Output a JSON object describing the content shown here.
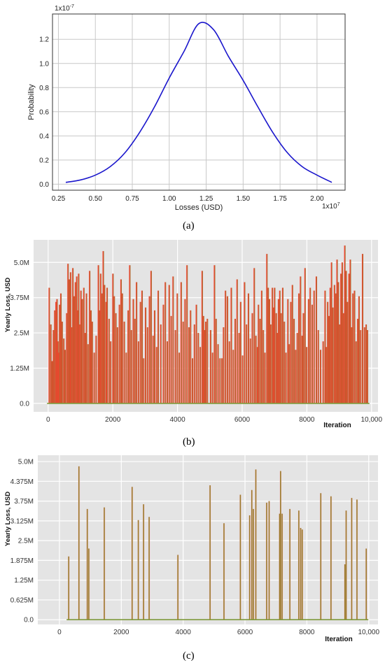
{
  "panels": {
    "a_caption": "(a)",
    "b_caption": "(b)",
    "c_caption": "(c)"
  },
  "chart_data": [
    {
      "type": "line",
      "id": "a",
      "title": "",
      "xlabel": "Losses (USD)",
      "ylabel": "Probability",
      "x_multiplier": "1x10",
      "x_exponent": "7",
      "y_multiplier": "1x10",
      "y_exponent": "-7",
      "xlim": [
        0.21,
        2.19
      ],
      "ylim": [
        -0.05,
        1.41
      ],
      "xticks": [
        0.25,
        0.5,
        0.75,
        1.0,
        1.25,
        1.5,
        1.75,
        2.0
      ],
      "xticklabels": [
        "0.25",
        "0.50",
        "0.75",
        "1.00",
        "1.25",
        "1.50",
        "1.75",
        "2.00"
      ],
      "yticks": [
        0.0,
        0.2,
        0.4,
        0.6,
        0.8,
        1.0,
        1.2
      ],
      "yticklabels": [
        "0.0",
        "0.2",
        "0.4",
        "0.6",
        "0.8",
        "1.0",
        "1.2"
      ],
      "grid": true,
      "series": [
        {
          "color": "#1a16cc",
          "x": [
            0.3,
            0.4,
            0.5,
            0.6,
            0.7,
            0.8,
            0.9,
            1.0,
            1.1,
            1.2,
            1.3,
            1.4,
            1.5,
            1.6,
            1.7,
            1.8,
            1.9,
            2.0,
            2.1
          ],
          "y": [
            0.015,
            0.035,
            0.075,
            0.145,
            0.26,
            0.43,
            0.64,
            0.88,
            1.1,
            1.33,
            1.28,
            1.06,
            0.86,
            0.64,
            0.43,
            0.26,
            0.145,
            0.075,
            0.015
          ]
        }
      ]
    },
    {
      "type": "bar",
      "id": "b",
      "title": "",
      "xlabel": "Iteration",
      "ylabel": "Yearly Loss, USD",
      "xlim": [
        -450,
        10200
      ],
      "ylim": [
        -300000,
        5800000
      ],
      "xticks": [
        0,
        2000,
        4000,
        6000,
        8000,
        10000
      ],
      "xticklabels": [
        "0",
        "2000",
        "4000",
        "6000",
        "8000",
        "10,000"
      ],
      "yticks": [
        0,
        1250000,
        2500000,
        3750000,
        5000000
      ],
      "yticklabels": [
        "0.0",
        "1.25M",
        "2.5M",
        "3.75M",
        "5.0M"
      ],
      "grid": true,
      "colors": {
        "bar": "#e8482e",
        "bar_edge": "#8a7a2c",
        "baseline": "#7f9a3c",
        "background": "#e4e4e4",
        "tint": "#f7c9d3"
      },
      "values": [
        [
          30,
          4100000
        ],
        [
          80,
          2800000
        ],
        [
          120,
          1500000
        ],
        [
          160,
          2600000
        ],
        [
          200,
          3300000
        ],
        [
          240,
          3600000
        ],
        [
          270,
          3700000
        ],
        [
          300,
          2200000
        ],
        [
          320,
          1800000
        ],
        [
          350,
          3500000
        ],
        [
          390,
          3900000
        ],
        [
          430,
          2900000
        ],
        [
          480,
          2300000
        ],
        [
          520,
          1900000
        ],
        [
          570,
          3200000
        ],
        [
          610,
          4950000
        ],
        [
          650,
          4400000
        ],
        [
          690,
          4650000
        ],
        [
          720,
          2700000
        ],
        [
          760,
          4800000
        ],
        [
          800,
          3800000
        ],
        [
          840,
          4300000
        ],
        [
          880,
          4500000
        ],
        [
          900,
          3300000
        ],
        [
          940,
          4600000
        ],
        [
          970,
          2800000
        ],
        [
          1010,
          4000000
        ],
        [
          1050,
          3700000
        ],
        [
          1100,
          4100000
        ],
        [
          1140,
          2500000
        ],
        [
          1180,
          3900000
        ],
        [
          1230,
          2100000
        ],
        [
          1280,
          4700000
        ],
        [
          1320,
          3300000
        ],
        [
          1360,
          2900000
        ],
        [
          1420,
          1800000
        ],
        [
          1480,
          2400000
        ],
        [
          1550,
          4900000
        ],
        [
          1590,
          3300000
        ],
        [
          1620,
          4600000
        ],
        [
          1660,
          3900000
        ],
        [
          1700,
          5400000
        ],
        [
          1740,
          4200000
        ],
        [
          1790,
          3600000
        ],
        [
          1820,
          4100000
        ],
        [
          1880,
          3000000
        ],
        [
          1930,
          2200000
        ],
        [
          2000,
          4600000
        ],
        [
          2040,
          3800000
        ],
        [
          2090,
          3200000
        ],
        [
          2140,
          2700000
        ],
        [
          2200,
          3500000
        ],
        [
          2250,
          4400000
        ],
        [
          2290,
          3900000
        ],
        [
          2350,
          2900000
        ],
        [
          2410,
          1800000
        ],
        [
          2470,
          3300000
        ],
        [
          2520,
          4900000
        ],
        [
          2570,
          2600000
        ],
        [
          2630,
          3700000
        ],
        [
          2680,
          3000000
        ],
        [
          2730,
          4300000
        ],
        [
          2790,
          2200000
        ],
        [
          2850,
          3600000
        ],
        [
          2900,
          4000000
        ],
        [
          2950,
          1600000
        ],
        [
          3010,
          3400000
        ],
        [
          3070,
          2700000
        ],
        [
          3130,
          3800000
        ],
        [
          3180,
          4700000
        ],
        [
          3240,
          2400000
        ],
        [
          3290,
          3300000
        ],
        [
          3350,
          2000000
        ],
        [
          3400,
          4000000
        ],
        [
          3480,
          2800000
        ],
        [
          3560,
          3500000
        ],
        [
          3620,
          4300000
        ],
        [
          3680,
          2200000
        ],
        [
          3740,
          4200000
        ],
        [
          3800,
          3100000
        ],
        [
          3860,
          4500000
        ],
        [
          3930,
          2600000
        ],
        [
          3990,
          3900000
        ],
        [
          4050,
          1800000
        ],
        [
          4110,
          4300000
        ],
        [
          4170,
          2900000
        ],
        [
          4230,
          3700000
        ],
        [
          4290,
          4900000
        ],
        [
          4350,
          2700000
        ],
        [
          4400,
          3300000
        ],
        [
          4460,
          1600000
        ],
        [
          4520,
          2800000
        ],
        [
          4580,
          3500000
        ],
        [
          4640,
          2500000
        ],
        [
          4700,
          2000000
        ],
        [
          4760,
          4700000
        ],
        [
          4800,
          3100000
        ],
        [
          4830,
          2600000
        ],
        [
          4870,
          2900000
        ],
        [
          4920,
          3000000
        ],
        [
          5020,
          2600000
        ],
        [
          5080,
          1800000
        ],
        [
          5140,
          4900000
        ],
        [
          5190,
          3000000
        ],
        [
          5250,
          2100000
        ],
        [
          5310,
          1600000
        ],
        [
          5370,
          1600000
        ],
        [
          5420,
          2700000
        ],
        [
          5480,
          4000000
        ],
        [
          5540,
          3800000
        ],
        [
          5600,
          2200000
        ],
        [
          5660,
          4100000
        ],
        [
          5720,
          1900000
        ],
        [
          5780,
          3000000
        ],
        [
          5840,
          4400000
        ],
        [
          5900,
          2500000
        ],
        [
          5950,
          3600000
        ],
        [
          6010,
          1700000
        ],
        [
          6070,
          4300000
        ],
        [
          6130,
          2800000
        ],
        [
          6190,
          3900000
        ],
        [
          6250,
          2300000
        ],
        [
          6310,
          3200000
        ],
        [
          6370,
          4800000
        ],
        [
          6420,
          2400000
        ],
        [
          6470,
          2000000
        ],
        [
          6500,
          3500000
        ],
        [
          6550,
          3000000
        ],
        [
          6600,
          4000000
        ],
        [
          6650,
          2600000
        ],
        [
          6700,
          1800000
        ],
        [
          6760,
          5300000
        ],
        [
          6800,
          4100000
        ],
        [
          6840,
          3700000
        ],
        [
          6880,
          2800000
        ],
        [
          6930,
          4100000
        ],
        [
          6970,
          3400000
        ],
        [
          7000,
          4100000
        ],
        [
          7050,
          3200000
        ],
        [
          7090,
          2500000
        ],
        [
          7120,
          3700000
        ],
        [
          7160,
          4000000
        ],
        [
          7200,
          3200000
        ],
        [
          7250,
          4100000
        ],
        [
          7300,
          2900000
        ],
        [
          7350,
          1800000
        ],
        [
          7410,
          3700000
        ],
        [
          7450,
          2100000
        ],
        [
          7500,
          3600000
        ],
        [
          7550,
          4200000
        ],
        [
          7600,
          3000000
        ],
        [
          7650,
          1900000
        ],
        [
          7700,
          2500000
        ],
        [
          7750,
          3900000
        ],
        [
          7800,
          4500000
        ],
        [
          7850,
          2400000
        ],
        [
          7890,
          3200000
        ],
        [
          7940,
          4800000
        ],
        [
          7990,
          2000000
        ],
        [
          8050,
          3700000
        ],
        [
          8100,
          4100000
        ],
        [
          8160,
          3500000
        ],
        [
          8220,
          4000000
        ],
        [
          8290,
          4500000
        ],
        [
          8350,
          2600000
        ],
        [
          8420,
          1900000
        ],
        [
          8500,
          2200000
        ],
        [
          8560,
          4000000
        ],
        [
          8600,
          2000000
        ],
        [
          8640,
          3600000
        ],
        [
          8680,
          3100000
        ],
        [
          8720,
          4100000
        ],
        [
          8760,
          5000000
        ],
        [
          8800,
          3400000
        ],
        [
          8850,
          4200000
        ],
        [
          8890,
          3900000
        ],
        [
          8930,
          5100000
        ],
        [
          8970,
          4300000
        ],
        [
          9010,
          2800000
        ],
        [
          9050,
          4600000
        ],
        [
          9090,
          5000000
        ],
        [
          9130,
          3200000
        ],
        [
          9170,
          5600000
        ],
        [
          9210,
          4700000
        ],
        [
          9250,
          3600000
        ],
        [
          9300,
          4600000
        ],
        [
          9340,
          5100000
        ],
        [
          9380,
          2700000
        ],
        [
          9420,
          3900000
        ],
        [
          9470,
          4000000
        ],
        [
          9520,
          2200000
        ],
        [
          9570,
          3000000
        ],
        [
          9610,
          3800000
        ],
        [
          9660,
          2600000
        ],
        [
          9720,
          5300000
        ],
        [
          9780,
          2700000
        ],
        [
          9830,
          2800000
        ],
        [
          9870,
          2600000
        ]
      ]
    },
    {
      "type": "bar",
      "id": "c",
      "title": "",
      "xlabel": "Iteration",
      "ylabel": "Yearly Loss, USD",
      "xlim": [
        -700,
        10300
      ],
      "ylim": [
        -150000,
        5200000
      ],
      "xticks": [
        0,
        2000,
        4000,
        6000,
        8000,
        10000
      ],
      "xticklabels": [
        "0",
        "2000",
        "4000",
        "6000",
        "8000",
        "10,000"
      ],
      "yticks": [
        0,
        625000,
        1250000,
        1875000,
        2500000,
        3125000,
        3750000,
        4375000,
        5000000
      ],
      "yticklabels": [
        "0.0",
        "0.625M",
        "1.25M",
        "1.875M",
        "2.5M",
        "3.125M",
        "3.75M",
        "4.375M",
        "5.0M"
      ],
      "grid": true,
      "colors": {
        "bar": "#9a7a2a",
        "baseline": "#7f9a3c",
        "background": "#e4e4e4",
        "tint": "#f7c9d3"
      },
      "values": [
        [
          300,
          2000000
        ],
        [
          630,
          4850000
        ],
        [
          900,
          3500000
        ],
        [
          950,
          2250000
        ],
        [
          1450,
          3550000
        ],
        [
          2350,
          4200000
        ],
        [
          2550,
          3150000
        ],
        [
          2720,
          3650000
        ],
        [
          2900,
          3250000
        ],
        [
          3830,
          2050000
        ],
        [
          4870,
          4250000
        ],
        [
          5320,
          3050000
        ],
        [
          5850,
          3950000
        ],
        [
          6150,
          3300000
        ],
        [
          6220,
          4100000
        ],
        [
          6270,
          3500000
        ],
        [
          6350,
          4750000
        ],
        [
          6700,
          3700000
        ],
        [
          6780,
          3750000
        ],
        [
          7120,
          3350000
        ],
        [
          7150,
          4700000
        ],
        [
          7200,
          3350000
        ],
        [
          7450,
          3500000
        ],
        [
          7740,
          3450000
        ],
        [
          7800,
          2900000
        ],
        [
          7850,
          2850000
        ],
        [
          8450,
          4000000
        ],
        [
          8780,
          3900000
        ],
        [
          9230,
          1750000
        ],
        [
          9270,
          3450000
        ],
        [
          9450,
          3850000
        ],
        [
          9620,
          3800000
        ],
        [
          9920,
          2250000
        ]
      ]
    }
  ]
}
